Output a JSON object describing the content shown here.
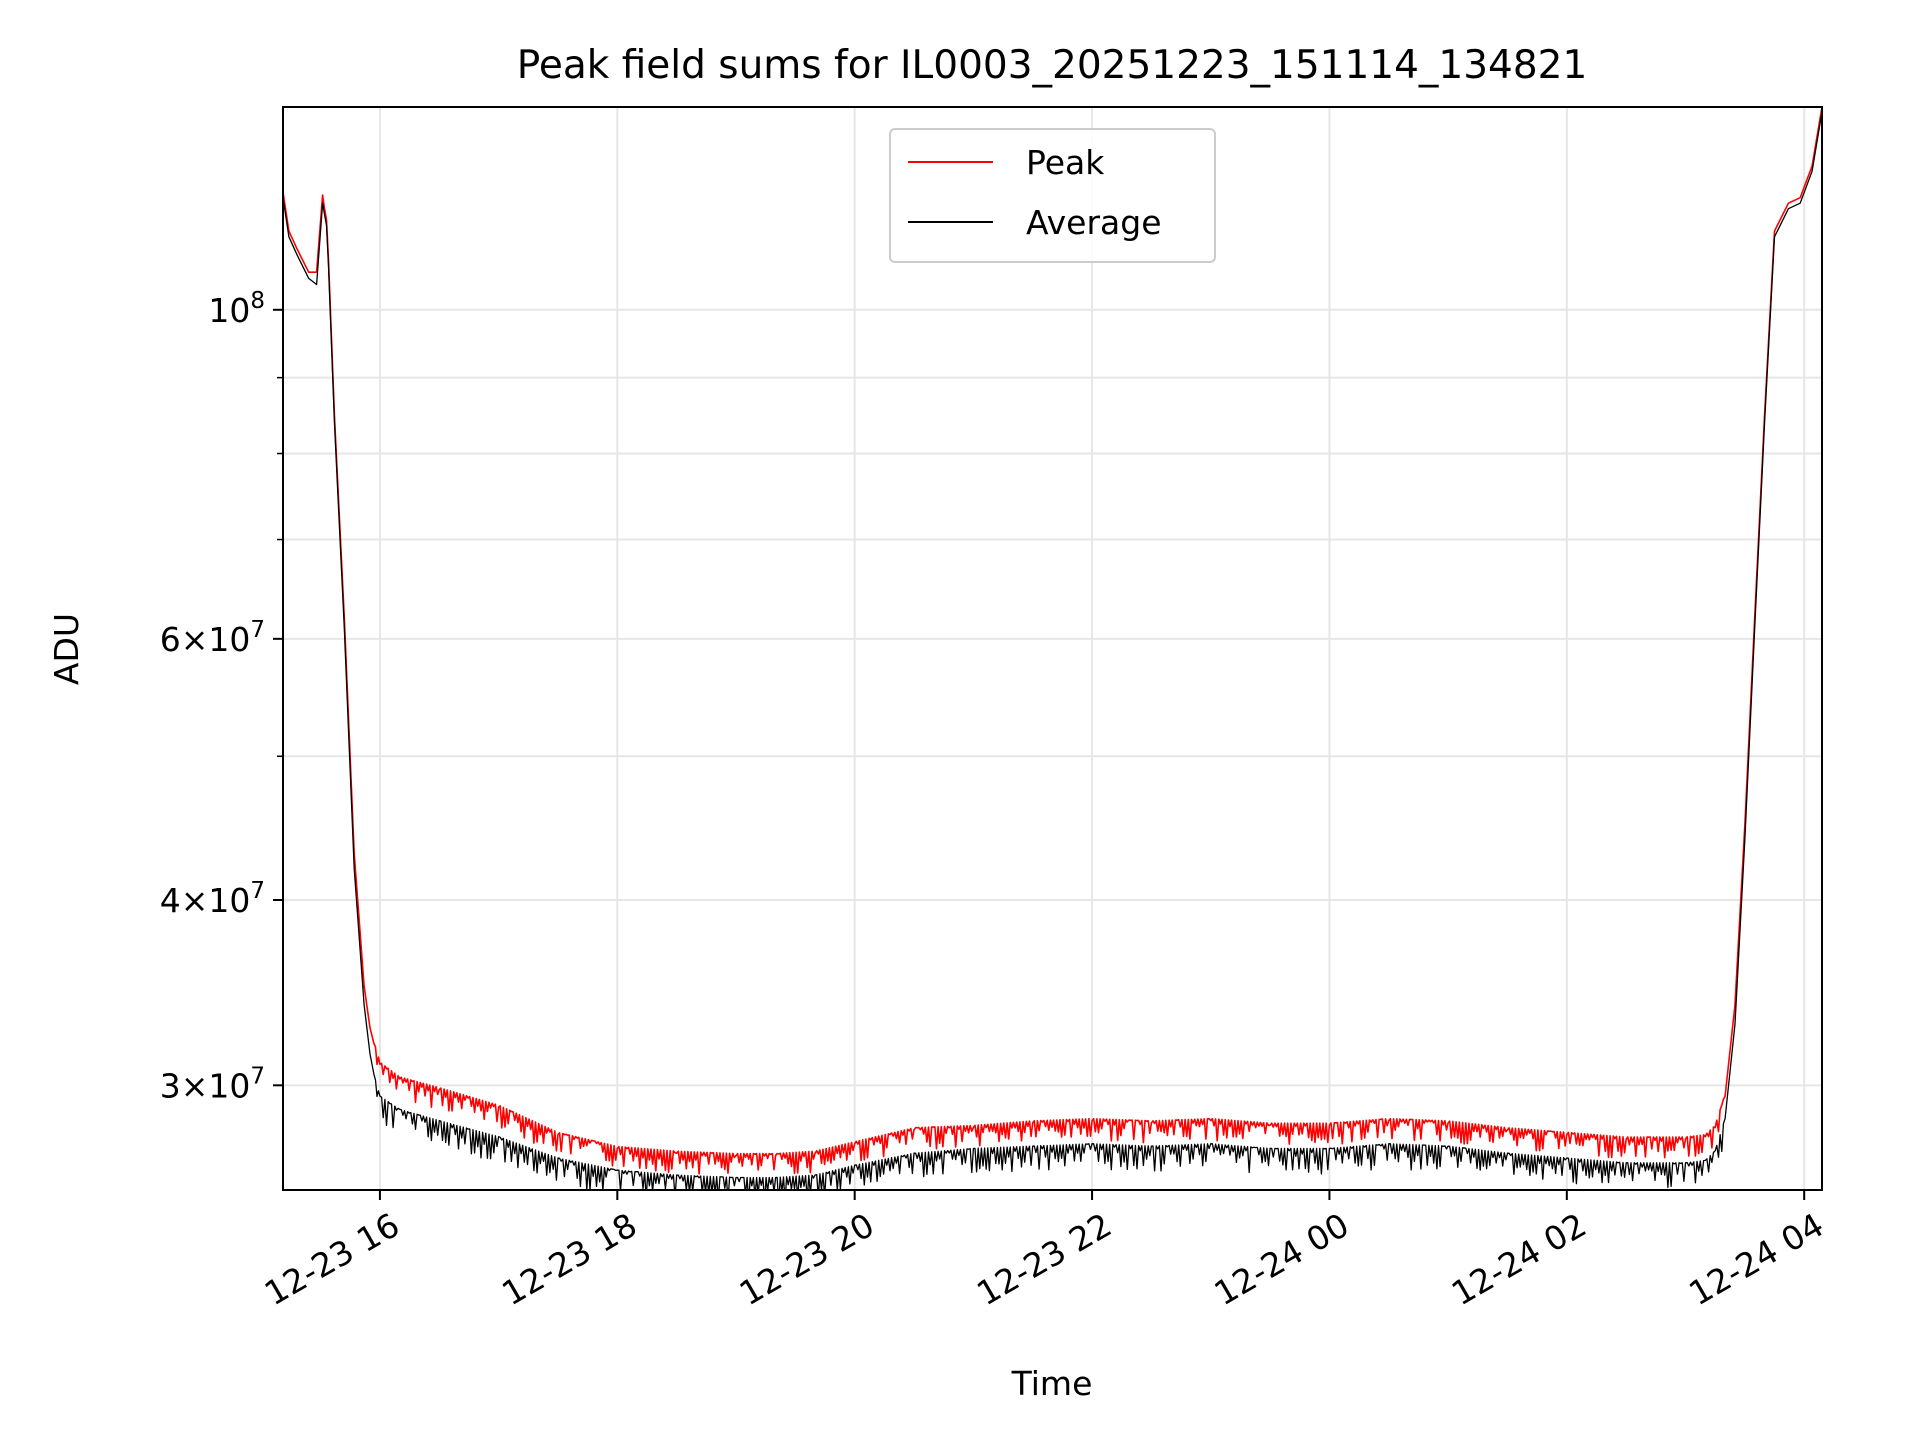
{
  "chart_data": {
    "type": "line",
    "title": "Peak field sums for IL0003_20251223_151114_134821",
    "xlabel": "Time",
    "ylabel": "ADU",
    "x_type": "datetime",
    "xlim": [
      "2025-12-23 15:11",
      "2025-12-24 04:09"
    ],
    "ylim": [
      25500000,
      137000000
    ],
    "yscale": "log",
    "grid": true,
    "legend": "upper center",
    "x_ticks": [
      "2025-12-23 16:00",
      "2025-12-23 18:00",
      "2025-12-23 20:00",
      "2025-12-23 22:00",
      "2025-12-24 00:00",
      "2025-12-24 02:00",
      "2025-12-24 04:00"
    ],
    "x_tick_labels": [
      "12-23 16",
      "12-23 18",
      "12-23 20",
      "12-23 22",
      "12-24 00",
      "12-24 02",
      "12-24 04"
    ],
    "y_ticks": [
      100000000,
      60000000,
      40000000,
      30000000
    ],
    "y_tick_labels": [
      {
        "mantissa": "",
        "exp": "8"
      },
      {
        "mantissa": "6",
        "exp": "7"
      },
      {
        "mantissa": "4",
        "exp": "7"
      },
      {
        "mantissa": "3",
        "exp": "7"
      }
    ],
    "y_minor_ticks": [
      50000000,
      70000000,
      80000000,
      90000000
    ],
    "series": [
      {
        "name": "Peak",
        "color": "#ff0000",
        "x": [
          "2025-12-23 15:11",
          "2025-12-23 15:14",
          "2025-12-23 15:18",
          "2025-12-23 15:24",
          "2025-12-23 15:28",
          "2025-12-23 15:31",
          "2025-12-23 15:32",
          "2025-12-23 15:33",
          "2025-12-23 15:34",
          "2025-12-23 15:37",
          "2025-12-23 15:42",
          "2025-12-23 15:47",
          "2025-12-23 15:52",
          "2025-12-23 15:55",
          "2025-12-23 15:57",
          "2025-12-23 16:00",
          "2025-12-23 16:10",
          "2025-12-23 16:30",
          "2025-12-23 17:00",
          "2025-12-23 17:30",
          "2025-12-23 18:00",
          "2025-12-23 18:30",
          "2025-12-23 19:00",
          "2025-12-23 19:20",
          "2025-12-23 19:40",
          "2025-12-23 20:00",
          "2025-12-23 20:30",
          "2025-12-23 21:00",
          "2025-12-23 21:30",
          "2025-12-23 22:00",
          "2025-12-23 22:30",
          "2025-12-23 23:00",
          "2025-12-23 23:30",
          "2025-12-24 00:00",
          "2025-12-24 00:30",
          "2025-12-24 01:00",
          "2025-12-24 01:30",
          "2025-12-24 02:00",
          "2025-12-24 02:30",
          "2025-12-24 03:00",
          "2025-12-24 03:10",
          "2025-12-24 03:15",
          "2025-12-24 03:20",
          "2025-12-24 03:25",
          "2025-12-24 03:30",
          "2025-12-24 03:35",
          "2025-12-24 03:40",
          "2025-12-24 03:45",
          "2025-12-24 03:52",
          "2025-12-24 03:58",
          "2025-12-24 04:04",
          "2025-12-24 04:09"
        ],
        "values": [
          120000000,
          113000000,
          110000000,
          106000000,
          106000000,
          119500000,
          117000000,
          115000000,
          108000000,
          85000000,
          62000000,
          43000000,
          35000000,
          32800000,
          32000000,
          31000000,
          30300000,
          29800000,
          29000000,
          27800000,
          27200000,
          27000000,
          26900000,
          26900000,
          27000000,
          27400000,
          28000000,
          28100000,
          28300000,
          28400000,
          28300000,
          28400000,
          28200000,
          28200000,
          28400000,
          28300000,
          28000000,
          27800000,
          27600000,
          27600000,
          27700000,
          28100000,
          29500000,
          34000000,
          45000000,
          62000000,
          85000000,
          113000000,
          118000000,
          119000000,
          125000000,
          137000000
        ]
      },
      {
        "name": "Average",
        "color": "#000000",
        "x": [
          "2025-12-23 15:11",
          "2025-12-23 15:14",
          "2025-12-23 15:18",
          "2025-12-23 15:24",
          "2025-12-23 15:28",
          "2025-12-23 15:31",
          "2025-12-23 15:32",
          "2025-12-23 15:33",
          "2025-12-23 15:34",
          "2025-12-23 15:37",
          "2025-12-23 15:42",
          "2025-12-23 15:47",
          "2025-12-23 15:52",
          "2025-12-23 15:55",
          "2025-12-23 15:57",
          "2025-12-23 16:00",
          "2025-12-23 16:10",
          "2025-12-23 16:30",
          "2025-12-23 17:00",
          "2025-12-23 17:30",
          "2025-12-23 18:00",
          "2025-12-23 18:30",
          "2025-12-23 19:00",
          "2025-12-23 19:20",
          "2025-12-23 19:40",
          "2025-12-23 20:00",
          "2025-12-23 20:30",
          "2025-12-23 21:00",
          "2025-12-23 21:30",
          "2025-12-23 22:00",
          "2025-12-23 22:30",
          "2025-12-23 23:00",
          "2025-12-23 23:30",
          "2025-12-24 00:00",
          "2025-12-24 00:30",
          "2025-12-24 01:00",
          "2025-12-24 01:30",
          "2025-12-24 02:00",
          "2025-12-24 02:30",
          "2025-12-24 03:00",
          "2025-12-24 03:10",
          "2025-12-24 03:15",
          "2025-12-24 03:20",
          "2025-12-24 03:25",
          "2025-12-24 03:30",
          "2025-12-24 03:35",
          "2025-12-24 03:40",
          "2025-12-24 03:45",
          "2025-12-24 03:52",
          "2025-12-24 03:58",
          "2025-12-24 04:04",
          "2025-12-24 04:09"
        ],
        "values": [
          119000000,
          112000000,
          109000000,
          105000000,
          104000000,
          118000000,
          116000000,
          114000000,
          107000000,
          84000000,
          61000000,
          42000000,
          34000000,
          31500000,
          30500000,
          29500000,
          28900000,
          28400000,
          27700000,
          26800000,
          26300000,
          26100000,
          26000000,
          26000000,
          26100000,
          26500000,
          27000000,
          27200000,
          27300000,
          27400000,
          27300000,
          27400000,
          27200000,
          27200000,
          27400000,
          27300000,
          27000000,
          26800000,
          26600000,
          26600000,
          26700000,
          27100000,
          28500000,
          33000000,
          44000000,
          61000000,
          84000000,
          112000000,
          117000000,
          118000000,
          124000000,
          136000000
        ]
      }
    ]
  }
}
